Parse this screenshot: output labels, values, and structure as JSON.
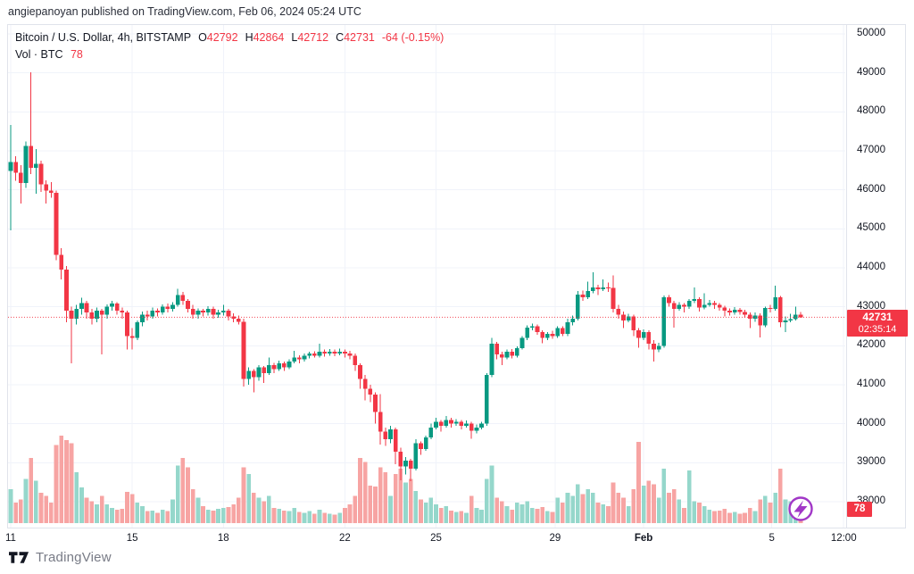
{
  "attribution": "angiepanoyan published on TradingView.com, Feb 06, 2024 05:24 UTC",
  "legend": {
    "line1": {
      "title": "Bitcoin / U.S. Dollar, 4h, BITSTAMP",
      "fields": [
        {
          "label": "O",
          "value": "42792"
        },
        {
          "label": "H",
          "value": "42864"
        },
        {
          "label": "L",
          "value": "42712"
        },
        {
          "label": "C",
          "value": "42731"
        }
      ],
      "change": "-64 (-0.15%)"
    },
    "line2": {
      "label": "Vol · BTC",
      "value": "78"
    }
  },
  "logo": {
    "text": "TradingView"
  },
  "icons": {
    "flash": "lightning-bolt-in-circle",
    "logo_mark": "tradingview-17-mark"
  },
  "colors": {
    "up": "#089981",
    "down": "#f23645",
    "vol_up": "#95d7cb",
    "vol_down": "#f7a4a3",
    "grid": "#f0f3fa",
    "border": "#e0e3eb",
    "text": "#131722",
    "muted": "#787b86",
    "badge": "#f23645",
    "flash": "#a137c7"
  },
  "chart_data": {
    "type": "candlestick",
    "title": "Bitcoin / U.S. Dollar",
    "exchange": "BITSTAMP",
    "interval": "4h",
    "date_range": "Jan 11 2024 - Feb 6 2024",
    "last_price": 42731,
    "countdown": "02:35:14",
    "current_volume": 78,
    "ohlc_current": {
      "open": 42792,
      "high": 42864,
      "low": 42712,
      "close": 42731,
      "change": "-64",
      "change_pct": "-0.15%"
    },
    "y_axis": {
      "min": 38000,
      "max": 50000,
      "step": 1000,
      "labels": [
        50000,
        49000,
        48000,
        47000,
        46000,
        45000,
        44000,
        43000,
        42000,
        41000,
        40000,
        39000,
        38000
      ]
    },
    "x_axis": {
      "ticks": [
        {
          "label": "11",
          "i": 0
        },
        {
          "label": "15",
          "i": 24
        },
        {
          "label": "18",
          "i": 42
        },
        {
          "label": "22",
          "i": 66
        },
        {
          "label": "25",
          "i": 84
        },
        {
          "label": "29",
          "i": 107.5
        },
        {
          "label": "Feb",
          "i": 125,
          "bold": true
        },
        {
          "label": "5",
          "i": 150.3
        },
        {
          "label": "12:00",
          "i": 164.5
        }
      ]
    },
    "candles_format": [
      "open",
      "high",
      "low",
      "close",
      "volume_btc"
    ],
    "candles": [
      [
        46480,
        47660,
        44960,
        46710,
        200
      ],
      [
        46710,
        46860,
        46230,
        46440,
        120
      ],
      [
        46440,
        46630,
        45650,
        46180,
        140
      ],
      [
        46180,
        47240,
        46050,
        47130,
        260
      ],
      [
        47130,
        49020,
        46400,
        46570,
        385
      ],
      [
        46570,
        47050,
        45900,
        46670,
        250
      ],
      [
        46670,
        46750,
        45950,
        46140,
        180
      ],
      [
        46140,
        46250,
        45650,
        45980,
        160
      ],
      [
        45980,
        46200,
        45800,
        45920,
        120
      ],
      [
        45920,
        45980,
        44200,
        44330,
        460
      ],
      [
        44330,
        44500,
        43700,
        43950,
        515
      ],
      [
        43950,
        44050,
        42600,
        42900,
        490
      ],
      [
        42900,
        43000,
        41550,
        42700,
        470
      ],
      [
        42700,
        43050,
        42550,
        42950,
        300
      ],
      [
        42950,
        43230,
        42800,
        43100,
        210
      ],
      [
        43100,
        43150,
        42700,
        42850,
        150
      ],
      [
        42850,
        42950,
        42550,
        42700,
        130
      ],
      [
        42700,
        42980,
        42600,
        42900,
        110
      ],
      [
        42900,
        42950,
        41780,
        42800,
        160
      ],
      [
        42800,
        43060,
        42700,
        43000,
        110
      ],
      [
        43000,
        43150,
        42900,
        43080,
        90
      ],
      [
        43080,
        43120,
        42800,
        42900,
        80
      ],
      [
        42900,
        42980,
        42700,
        42850,
        85
      ],
      [
        42850,
        42900,
        41900,
        42250,
        185
      ],
      [
        42250,
        42450,
        41900,
        42200,
        170
      ],
      [
        42200,
        42650,
        42150,
        42600,
        120
      ],
      [
        42600,
        42880,
        42500,
        42800,
        100
      ],
      [
        42800,
        42900,
        42650,
        42750,
        70
      ],
      [
        42750,
        42980,
        42700,
        42900,
        75
      ],
      [
        42900,
        42960,
        42750,
        42850,
        60
      ],
      [
        42850,
        43060,
        42800,
        43000,
        80
      ],
      [
        43000,
        43080,
        42850,
        42950,
        70
      ],
      [
        42950,
        43120,
        42880,
        43050,
        140
      ],
      [
        43050,
        43460,
        43000,
        43300,
        340
      ],
      [
        43300,
        43380,
        43050,
        43150,
        385
      ],
      [
        43150,
        43200,
        42850,
        42950,
        330
      ],
      [
        42950,
        43050,
        42700,
        42800,
        200
      ],
      [
        42800,
        42960,
        42700,
        42900,
        150
      ],
      [
        42900,
        42950,
        42750,
        42850,
        100
      ],
      [
        42850,
        43020,
        42780,
        42950,
        80
      ],
      [
        42950,
        43000,
        42700,
        42800,
        75
      ],
      [
        42800,
        42920,
        42720,
        42850,
        85
      ],
      [
        42850,
        43050,
        42780,
        42900,
        90
      ],
      [
        42900,
        42950,
        42650,
        42750,
        95
      ],
      [
        42750,
        42830,
        42600,
        42700,
        110
      ],
      [
        42700,
        42780,
        42550,
        42620,
        150
      ],
      [
        42620,
        42700,
        40950,
        41150,
        330
      ],
      [
        41150,
        41450,
        41000,
        41350,
        290
      ],
      [
        41350,
        41400,
        40800,
        41200,
        180
      ],
      [
        41200,
        41500,
        41100,
        41450,
        150
      ],
      [
        41450,
        41480,
        41050,
        41300,
        130
      ],
      [
        41300,
        41700,
        41250,
        41500,
        160
      ],
      [
        41500,
        41560,
        41300,
        41400,
        90
      ],
      [
        41400,
        41620,
        41350,
        41550,
        85
      ],
      [
        41550,
        41600,
        41350,
        41450,
        75
      ],
      [
        41450,
        41650,
        41400,
        41600,
        70
      ],
      [
        41600,
        41870,
        41550,
        41700,
        90
      ],
      [
        41700,
        41760,
        41550,
        41650,
        65
      ],
      [
        41650,
        41800,
        41600,
        41750,
        60
      ],
      [
        41750,
        41850,
        41680,
        41800,
        70
      ],
      [
        41800,
        41860,
        41700,
        41750,
        55
      ],
      [
        41750,
        42050,
        41700,
        41850,
        80
      ],
      [
        41850,
        41900,
        41720,
        41800,
        60
      ],
      [
        41800,
        41920,
        41750,
        41850,
        55
      ],
      [
        41850,
        41900,
        41730,
        41800,
        50
      ],
      [
        41800,
        41930,
        41760,
        41850,
        60
      ],
      [
        41850,
        41900,
        41700,
        41800,
        90
      ],
      [
        41800,
        41870,
        41650,
        41750,
        110
      ],
      [
        41750,
        41800,
        41350,
        41500,
        160
      ],
      [
        41500,
        41550,
        40900,
        41150,
        385
      ],
      [
        41150,
        41250,
        40600,
        40900,
        360
      ],
      [
        40900,
        41000,
        40550,
        40750,
        220
      ],
      [
        40750,
        40800,
        40000,
        40300,
        215
      ],
      [
        40300,
        40760,
        39470,
        39800,
        330
      ],
      [
        39800,
        39900,
        39430,
        39600,
        300
      ],
      [
        39600,
        39950,
        39500,
        39850,
        160
      ],
      [
        39850,
        39900,
        38960,
        39280,
        290
      ],
      [
        39280,
        39380,
        38550,
        38900,
        320
      ],
      [
        38900,
        39150,
        38700,
        39050,
        240
      ],
      [
        39050,
        39100,
        38530,
        38850,
        260
      ],
      [
        38850,
        39600,
        38800,
        39500,
        190
      ],
      [
        39500,
        39550,
        39200,
        39350,
        140
      ],
      [
        39350,
        39700,
        39300,
        39650,
        120
      ],
      [
        39650,
        40000,
        39600,
        39900,
        150
      ],
      [
        39900,
        40150,
        39850,
        40050,
        110
      ],
      [
        40050,
        40100,
        39800,
        39950,
        90
      ],
      [
        39950,
        40200,
        39900,
        40100,
        100
      ],
      [
        40100,
        40150,
        39900,
        40000,
        75
      ],
      [
        40000,
        40120,
        39950,
        40050,
        65
      ],
      [
        40050,
        40100,
        39850,
        39950,
        70
      ],
      [
        39950,
        40080,
        39900,
        40000,
        60
      ],
      [
        40000,
        40050,
        39620,
        39820,
        160
      ],
      [
        39820,
        39980,
        39750,
        39900,
        90
      ],
      [
        39900,
        40050,
        39850,
        40000,
        80
      ],
      [
        40000,
        41300,
        39950,
        41250,
        260
      ],
      [
        41250,
        42200,
        41200,
        42050,
        340
      ],
      [
        42050,
        42100,
        41650,
        41780,
        150
      ],
      [
        41780,
        41850,
        41500,
        41700,
        130
      ],
      [
        41700,
        41900,
        41650,
        41850,
        100
      ],
      [
        41850,
        41920,
        41680,
        41750,
        80
      ],
      [
        41750,
        41990,
        41700,
        41940,
        120
      ],
      [
        41940,
        42250,
        41900,
        42200,
        110
      ],
      [
        42200,
        42520,
        42150,
        42470,
        130
      ],
      [
        42470,
        42570,
        42400,
        42500,
        90
      ],
      [
        42500,
        42550,
        42280,
        42350,
        85
      ],
      [
        42350,
        42400,
        42060,
        42200,
        95
      ],
      [
        42200,
        42350,
        42150,
        42300,
        70
      ],
      [
        42300,
        42380,
        42180,
        42250,
        65
      ],
      [
        42250,
        42500,
        42200,
        42450,
        150
      ],
      [
        42450,
        42500,
        42250,
        42300,
        120
      ],
      [
        42300,
        42700,
        42250,
        42600,
        180
      ],
      [
        42600,
        42780,
        42520,
        42700,
        160
      ],
      [
        42700,
        43400,
        42650,
        43310,
        230
      ],
      [
        43310,
        43420,
        43150,
        43250,
        170
      ],
      [
        43250,
        43650,
        43200,
        43400,
        200
      ],
      [
        43400,
        43890,
        43350,
        43500,
        180
      ],
      [
        43500,
        43560,
        43300,
        43450,
        120
      ],
      [
        43450,
        43700,
        43400,
        43500,
        110
      ],
      [
        43500,
        43620,
        43380,
        43480,
        100
      ],
      [
        43480,
        43810,
        42850,
        42950,
        240
      ],
      [
        42950,
        43050,
        42700,
        42800,
        180
      ],
      [
        42800,
        42880,
        42450,
        42650,
        150
      ],
      [
        42650,
        42820,
        42600,
        42750,
        100
      ],
      [
        42750,
        42800,
        42250,
        42400,
        200
      ],
      [
        42400,
        42450,
        41950,
        42200,
        480
      ],
      [
        42200,
        42420,
        42150,
        42350,
        220
      ],
      [
        42350,
        42400,
        41900,
        42050,
        250
      ],
      [
        42050,
        42150,
        41600,
        41900,
        230
      ],
      [
        41900,
        42080,
        41840,
        42000,
        150
      ],
      [
        42000,
        43290,
        41950,
        43240,
        320
      ],
      [
        43240,
        43300,
        43000,
        43100,
        180
      ],
      [
        43100,
        43150,
        42470,
        42950,
        200
      ],
      [
        42950,
        43120,
        42900,
        43050,
        140
      ],
      [
        43050,
        43100,
        42850,
        43000,
        90
      ],
      [
        43000,
        43200,
        42950,
        43150,
        310
      ],
      [
        43150,
        43500,
        43100,
        43200,
        130
      ],
      [
        43200,
        43250,
        42880,
        42980,
        120
      ],
      [
        42980,
        43350,
        42930,
        43050,
        100
      ],
      [
        43050,
        43180,
        43000,
        43100,
        80
      ],
      [
        43100,
        43150,
        42950,
        43050,
        70
      ],
      [
        43050,
        43100,
        42900,
        42980,
        75
      ],
      [
        42980,
        43030,
        42750,
        42900,
        85
      ],
      [
        42900,
        42960,
        42780,
        42850,
        60
      ],
      [
        42850,
        42990,
        42800,
        42920,
        65
      ],
      [
        42920,
        42970,
        42800,
        42870,
        55
      ],
      [
        42870,
        42920,
        42720,
        42800,
        60
      ],
      [
        42800,
        42850,
        42450,
        42700,
        90
      ],
      [
        42700,
        42860,
        42620,
        42780,
        70
      ],
      [
        42780,
        42830,
        42210,
        42520,
        140
      ],
      [
        42520,
        43000,
        42480,
        42970,
        160
      ],
      [
        42970,
        43050,
        42850,
        42950,
        120
      ],
      [
        42950,
        43540,
        42900,
        43240,
        180
      ],
      [
        43240,
        43280,
        42480,
        42600,
        320
      ],
      [
        42600,
        42750,
        42350,
        42650,
        140
      ],
      [
        42650,
        42820,
        42600,
        42680,
        130
      ],
      [
        42680,
        43000,
        42650,
        42800,
        110
      ],
      [
        42792,
        42864,
        42712,
        42731,
        78
      ]
    ]
  }
}
